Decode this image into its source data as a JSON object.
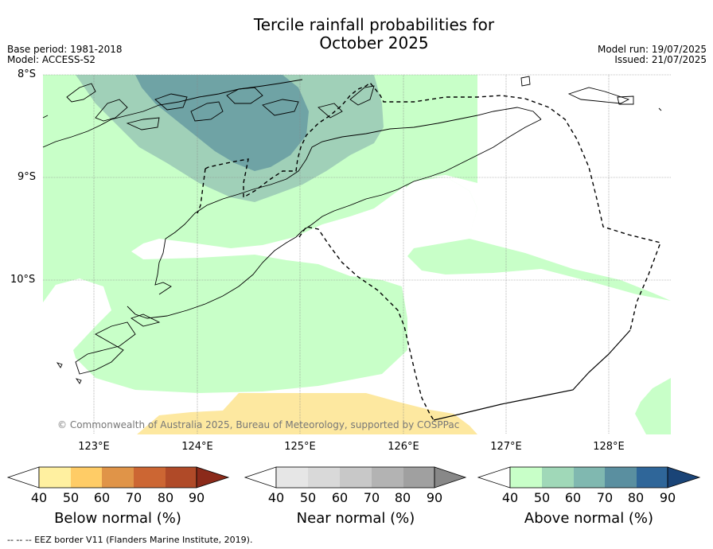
{
  "title": {
    "line1": "Tercile rainfall probabilities for",
    "line2": "October 2025"
  },
  "meta": {
    "base_period": "Base period: 1981-2018",
    "model": "Model: ACCESS-S2",
    "model_run": "Model run: 19/07/2025",
    "issued": "Issued: 21/07/2025"
  },
  "map": {
    "lat_labels": [
      "8°S",
      "9°S",
      "10°S"
    ],
    "lon_labels": [
      "123°E",
      "124°E",
      "125°E",
      "126°E",
      "127°E",
      "128°E"
    ],
    "copyright": "© Commonwealth of Australia 2025, Bureau of Meteorology, supported by COSPPac"
  },
  "colorbars": [
    {
      "title": "Below normal (%)",
      "ticks": [
        "40",
        "50",
        "60",
        "70",
        "80",
        "90"
      ],
      "colors": [
        "#fff0a0",
        "#ffcc66",
        "#e09448",
        "#cc6633",
        "#b04a28",
        "#8b2a1a"
      ]
    },
    {
      "title": "Near normal (%)",
      "ticks": [
        "40",
        "50",
        "60",
        "70",
        "80",
        "90"
      ],
      "colors": [
        "#e6e6e6",
        "#d9d9d9",
        "#c8c8c8",
        "#b3b3b3",
        "#a0a0a0",
        "#888888"
      ]
    },
    {
      "title": "Above normal (%)",
      "ticks": [
        "40",
        "50",
        "60",
        "70",
        "80",
        "90"
      ],
      "colors": [
        "#c8ffc8",
        "#a0d8b8",
        "#80b8b0",
        "#5a8fa0",
        "#2f6699",
        "#1a4477"
      ]
    }
  ],
  "footer": "--  --  -- EEZ border V11 (Flanders Marine Institute, 2019)."
}
